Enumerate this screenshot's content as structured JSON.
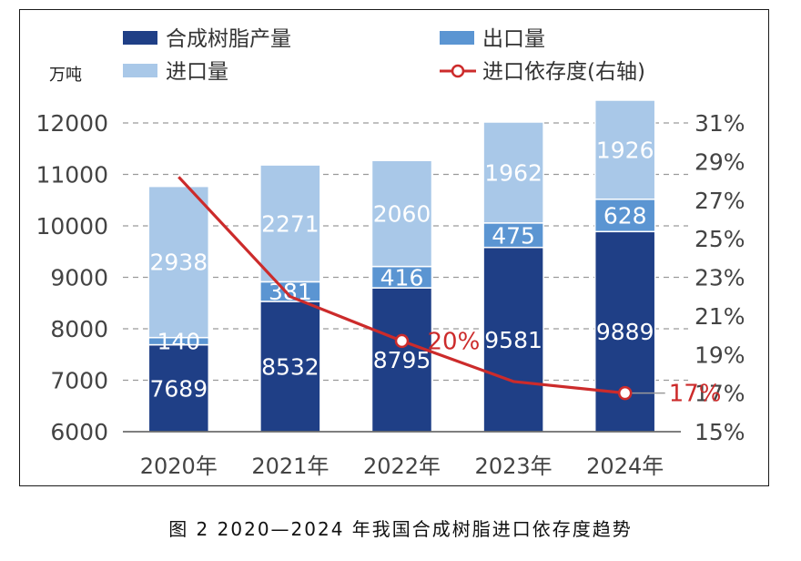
{
  "chart_data": {
    "type": "bar",
    "subtype": "stacked-bar-with-line-secondary-axis",
    "y_unit_label": "万吨",
    "categories": [
      "2020年",
      "2021年",
      "2022年",
      "2023年",
      "2024年"
    ],
    "series": [
      {
        "name": "合成树脂产量",
        "kind": "bar",
        "color": "#1f3f86",
        "values": [
          7689,
          8532,
          8795,
          9581,
          9889
        ]
      },
      {
        "name": "出口量",
        "kind": "bar",
        "color": "#5b95d2",
        "values": [
          140,
          381,
          416,
          475,
          628
        ]
      },
      {
        "name": "进口量",
        "kind": "bar",
        "color": "#a9c8e8",
        "values": [
          2938,
          2271,
          2060,
          1962,
          1926
        ]
      },
      {
        "name": "进口依存度(右轴)",
        "kind": "line",
        "axis": "right",
        "color": "#cc2b2b",
        "values": [
          28.2,
          22.0,
          19.7,
          17.6,
          17.0
        ]
      }
    ],
    "line_labels": [
      {
        "index": 2,
        "text": "20%"
      },
      {
        "index": 4,
        "text": "17%"
      }
    ],
    "y_left": {
      "min": 6000,
      "max": 12000,
      "ticks": [
        6000,
        7000,
        8000,
        9000,
        10000,
        11000,
        12000
      ]
    },
    "y_right": {
      "min": 15,
      "max": 31,
      "ticks": [
        "15%",
        "17%",
        "19%",
        "21%",
        "23%",
        "25%",
        "27%",
        "29%",
        "31%"
      ]
    },
    "grid": "dashed",
    "legend": "top"
  },
  "caption": "图 2  2020—2024 年我国合成树脂进口依存度趋势"
}
